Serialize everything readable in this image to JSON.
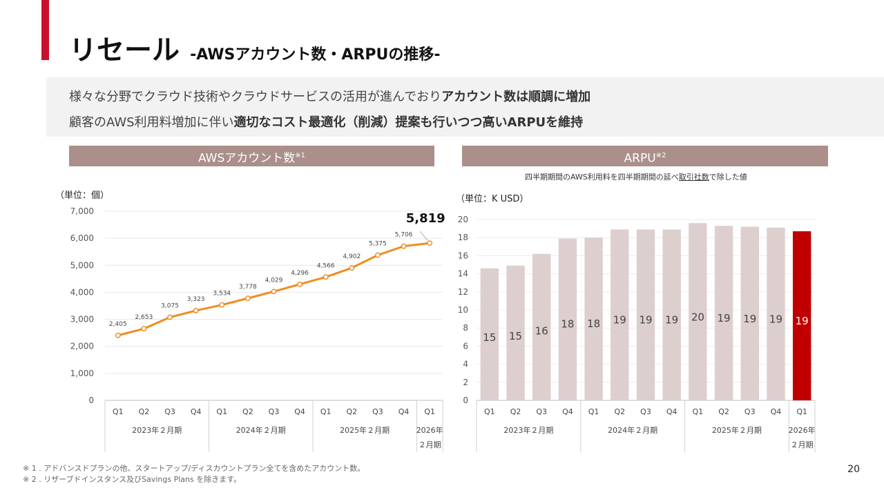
{
  "header": {
    "title_main": "リセール",
    "title_sub": "-AWSアカウント数・ARPUの推移-"
  },
  "summary": {
    "line1_normal": "様々な分野でクラウド技術やクラウドサービスの活用が進んでおり",
    "line1_bold": "アカウント数は順調に増加",
    "line2_normal": "顧客のAWS利用料増加に伴い",
    "line2_bold": "適切なコスト最適化（削減）提案も行いつつ高いARPUを維持"
  },
  "left_panel": {
    "title": "AWSアカウント数",
    "title_note": "※1",
    "unit": "（単位：個）"
  },
  "right_panel": {
    "title": "ARPU",
    "title_note": "※2",
    "caption_pre": "四半期期間のAWS利用料を四半期期間の延べ",
    "caption_underlined": "取引社数",
    "caption_post": "で除した値",
    "unit": "（単位：K USD）"
  },
  "footnotes": [
    "※  1 . アドバンスドプランの他、スタートアップ/ディスカウントプラン全てを含めたアカウント数。",
    "※  2 . リザーブドインスタンス及びSavings Plans を除きます。"
  ],
  "page_number": "20",
  "colors": {
    "accent_red": "#c8102e",
    "panel_header": "#ab8f8a",
    "line_orange": "#f08c1e",
    "bar_light": "#dccfcd",
    "bar_highlight": "#c00000"
  },
  "chart_data": [
    {
      "type": "line",
      "categories": [
        "Q1",
        "Q2",
        "Q3",
        "Q4",
        "Q1",
        "Q2",
        "Q3",
        "Q4",
        "Q1",
        "Q2",
        "Q3",
        "Q4",
        "Q1"
      ],
      "groups": [
        {
          "label": "2023年２月期",
          "count": 4
        },
        {
          "label": "2024年２月期",
          "count": 4
        },
        {
          "label": "2025年２月期",
          "count": 4
        },
        {
          "label": "2026年\n２月期",
          "count": 1
        }
      ],
      "values": [
        2405,
        2653,
        3075,
        3323,
        3534,
        3778,
        4029,
        4296,
        4566,
        4902,
        5375,
        5706,
        5819
      ],
      "data_labels": [
        "2,405",
        "2,653",
        "3,075",
        "3,323",
        "3,534",
        "3,778",
        "4,029",
        "4,296",
        "4,566",
        "4,902",
        "5,375",
        "5,706",
        "5,819"
      ],
      "highlight_index": 12,
      "y_ticks": [
        "0",
        "1,000",
        "2,000",
        "3,000",
        "4,000",
        "5,000",
        "6,000",
        "7,000"
      ],
      "ylim": [
        0,
        7000
      ],
      "grid": true
    },
    {
      "type": "bar",
      "categories": [
        "Q1",
        "Q2",
        "Q3",
        "Q4",
        "Q1",
        "Q2",
        "Q3",
        "Q4",
        "Q1",
        "Q2",
        "Q3",
        "Q4",
        "Q1"
      ],
      "groups": [
        {
          "label": "2023年２月期",
          "count": 4
        },
        {
          "label": "2024年２月期",
          "count": 4
        },
        {
          "label": "2025年２月期",
          "count": 4
        },
        {
          "label": "2026年\n２月期",
          "count": 1
        }
      ],
      "values": [
        14.6,
        14.9,
        16.2,
        17.9,
        18.0,
        18.9,
        18.9,
        18.9,
        19.6,
        19.3,
        19.2,
        19.1,
        18.7
      ],
      "data_labels": [
        "15",
        "15",
        "16",
        "18",
        "18",
        "19",
        "19",
        "19",
        "20",
        "19",
        "19",
        "19",
        "19"
      ],
      "highlight_index": 12,
      "y_ticks": [
        "0",
        "2",
        "4",
        "6",
        "8",
        "10",
        "12",
        "14",
        "16",
        "18",
        "20"
      ],
      "ylim": [
        0,
        20
      ],
      "grid": true
    }
  ]
}
